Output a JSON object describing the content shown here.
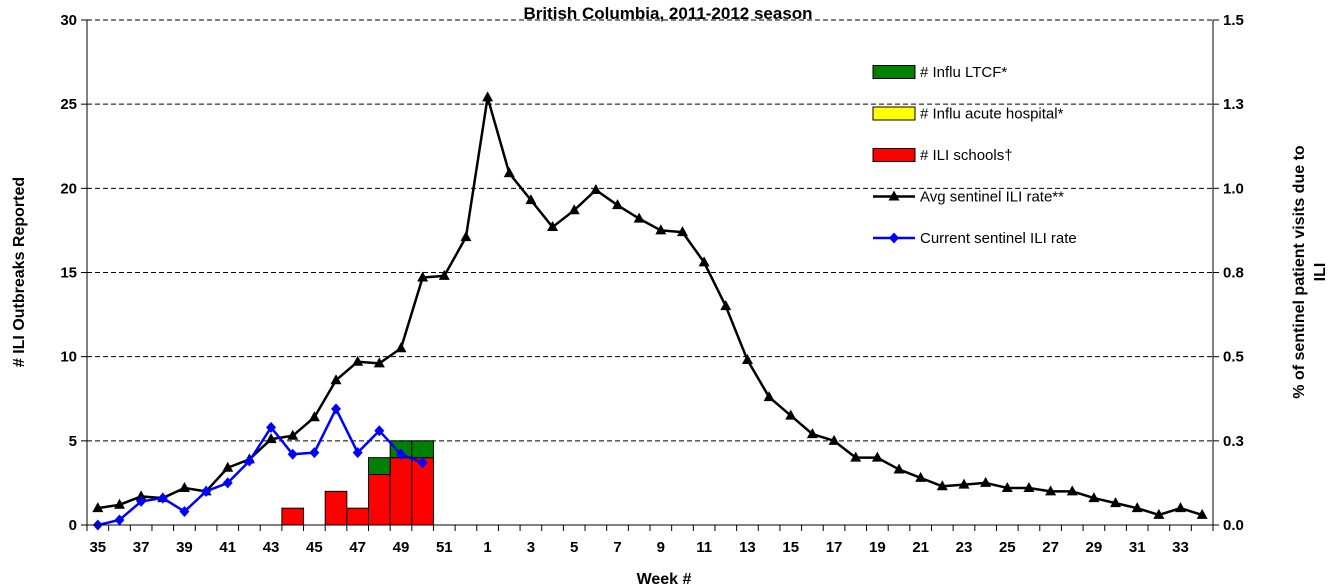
{
  "chart_data": {
    "type": "bar",
    "title": "British Columbia, 2011-2012 season",
    "xlabel": "Week #",
    "ylabel_left": "# ILI Outbreaks Reported",
    "ylabel_right_lines": [
      "% of sentinel patient visits due to",
      "ILI"
    ],
    "weeks": [
      35,
      36,
      37,
      38,
      39,
      40,
      41,
      42,
      43,
      44,
      45,
      46,
      47,
      48,
      49,
      50,
      51,
      52,
      1,
      2,
      3,
      4,
      5,
      6,
      7,
      8,
      9,
      10,
      11,
      12,
      13,
      14,
      15,
      16,
      17,
      18,
      19,
      20,
      21,
      22,
      23,
      24,
      25,
      26,
      27,
      28,
      29,
      30,
      31,
      32,
      33,
      34
    ],
    "x_tick_labels": [
      "35",
      "37",
      "39",
      "41",
      "43",
      "45",
      "47",
      "49",
      "51",
      "1",
      "3",
      "5",
      "7",
      "9",
      "11",
      "13",
      "15",
      "17",
      "19",
      "21",
      "23",
      "25",
      "27",
      "29",
      "31",
      "33"
    ],
    "y_left": {
      "range": [
        0,
        30
      ],
      "ticks": [
        "0",
        "5",
        "10",
        "15",
        "20",
        "25",
        "30"
      ]
    },
    "y_right": {
      "range": [
        0,
        1.5
      ],
      "ticks": [
        "0.0",
        "0.3",
        "0.5",
        "0.8",
        "1.0",
        "1.3",
        "1.5"
      ]
    },
    "grid": "horizontal dashed",
    "legend_position": "top-right",
    "bar_series": [
      {
        "name": "# ILI schools†",
        "color": "#ff0000",
        "points": [
          [
            44,
            1
          ],
          [
            46,
            2
          ],
          [
            47,
            1
          ],
          [
            48,
            3
          ],
          [
            49,
            4
          ],
          [
            50,
            4
          ]
        ]
      },
      {
        "name": "# Influ acute hospital*",
        "color": "#ffff00",
        "points": []
      },
      {
        "name": "# Influ LTCF*",
        "color": "#008000",
        "points": [
          [
            48,
            1
          ],
          [
            49,
            1
          ],
          [
            50,
            1
          ]
        ]
      }
    ],
    "line_series": [
      {
        "name": "Avg sentinel ILI rate**",
        "color": "#000000",
        "marker": "triangle",
        "values": [
          0.05,
          0.06,
          0.085,
          0.08,
          0.11,
          0.1,
          0.17,
          0.195,
          0.255,
          0.265,
          0.32,
          0.43,
          0.485,
          0.48,
          0.525,
          0.735,
          0.74,
          0.855,
          1.27,
          1.045,
          0.965,
          0.885,
          0.935,
          0.995,
          0.95,
          0.91,
          0.875,
          0.87,
          0.78,
          0.65,
          0.49,
          0.38,
          0.325,
          0.27,
          0.25,
          0.2,
          0.2,
          0.165,
          0.14,
          0.115,
          0.12,
          0.125,
          0.11,
          0.11,
          0.1,
          0.1,
          0.08,
          0.065,
          0.05,
          0.03,
          0.05,
          0.03
        ]
      },
      {
        "name": "Current sentinel ILI rate",
        "color": "#0000ff",
        "marker": "diamond",
        "values": [
          0.0,
          0.015,
          0.07,
          0.08,
          0.04,
          0.1,
          0.125,
          0.19,
          0.29,
          0.21,
          0.215,
          0.345,
          0.215,
          0.28,
          0.21,
          0.185
        ]
      }
    ],
    "legend_order": [
      "# Influ LTCF*",
      "# Influ acute hospital*",
      "# ILI schools†",
      "Avg sentinel ILI rate**",
      "Current sentinel ILI rate"
    ]
  }
}
